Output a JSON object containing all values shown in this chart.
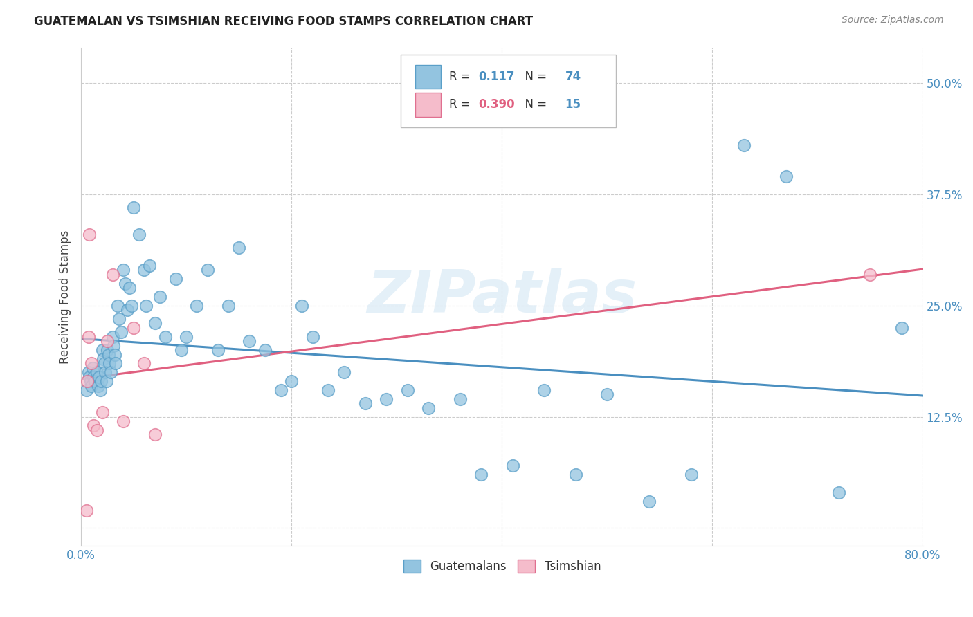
{
  "title": "GUATEMALAN VS TSIMSHIAN RECEIVING FOOD STAMPS CORRELATION CHART",
  "source": "Source: ZipAtlas.com",
  "ylabel": "Receiving Food Stamps",
  "xlim": [
    0.0,
    0.8
  ],
  "ylim": [
    -0.02,
    0.54
  ],
  "yticks": [
    0.0,
    0.125,
    0.25,
    0.375,
    0.5
  ],
  "ytick_labels": [
    "",
    "12.5%",
    "25.0%",
    "37.5%",
    "50.0%"
  ],
  "watermark": "ZIPatlas",
  "blue_fill": "#93c4e0",
  "blue_edge": "#5a9fc8",
  "pink_fill": "#f5bccb",
  "pink_edge": "#e07090",
  "blue_line": "#4a8fc0",
  "pink_line": "#e06080",
  "legend_R1": "0.117",
  "legend_N1": "74",
  "legend_R2": "0.390",
  "legend_N2": "15",
  "gx": [
    0.005,
    0.007,
    0.008,
    0.009,
    0.01,
    0.011,
    0.012,
    0.013,
    0.015,
    0.016,
    0.017,
    0.018,
    0.019,
    0.02,
    0.021,
    0.022,
    0.023,
    0.024,
    0.025,
    0.026,
    0.027,
    0.028,
    0.03,
    0.031,
    0.032,
    0.033,
    0.035,
    0.036,
    0.038,
    0.04,
    0.042,
    0.044,
    0.046,
    0.048,
    0.05,
    0.055,
    0.06,
    0.062,
    0.065,
    0.07,
    0.075,
    0.08,
    0.09,
    0.095,
    0.1,
    0.11,
    0.12,
    0.13,
    0.14,
    0.15,
    0.16,
    0.175,
    0.19,
    0.2,
    0.21,
    0.22,
    0.235,
    0.25,
    0.27,
    0.29,
    0.31,
    0.33,
    0.36,
    0.38,
    0.41,
    0.44,
    0.47,
    0.5,
    0.54,
    0.58,
    0.63,
    0.67,
    0.72,
    0.78
  ],
  "gy": [
    0.155,
    0.175,
    0.17,
    0.165,
    0.16,
    0.18,
    0.17,
    0.165,
    0.175,
    0.16,
    0.17,
    0.155,
    0.165,
    0.2,
    0.19,
    0.185,
    0.175,
    0.165,
    0.2,
    0.195,
    0.185,
    0.175,
    0.215,
    0.205,
    0.195,
    0.185,
    0.25,
    0.235,
    0.22,
    0.29,
    0.275,
    0.245,
    0.27,
    0.25,
    0.36,
    0.33,
    0.29,
    0.25,
    0.295,
    0.23,
    0.26,
    0.215,
    0.28,
    0.2,
    0.215,
    0.25,
    0.29,
    0.2,
    0.25,
    0.315,
    0.21,
    0.2,
    0.155,
    0.165,
    0.25,
    0.215,
    0.155,
    0.175,
    0.14,
    0.145,
    0.155,
    0.135,
    0.145,
    0.06,
    0.07,
    0.155,
    0.06,
    0.15,
    0.03,
    0.06,
    0.43,
    0.395,
    0.04,
    0.225
  ],
  "tx": [
    0.005,
    0.006,
    0.007,
    0.008,
    0.01,
    0.012,
    0.015,
    0.02,
    0.025,
    0.03,
    0.04,
    0.05,
    0.06,
    0.07,
    0.75
  ],
  "ty": [
    0.02,
    0.165,
    0.215,
    0.33,
    0.185,
    0.115,
    0.11,
    0.13,
    0.21,
    0.285,
    0.12,
    0.225,
    0.185,
    0.105,
    0.285
  ]
}
